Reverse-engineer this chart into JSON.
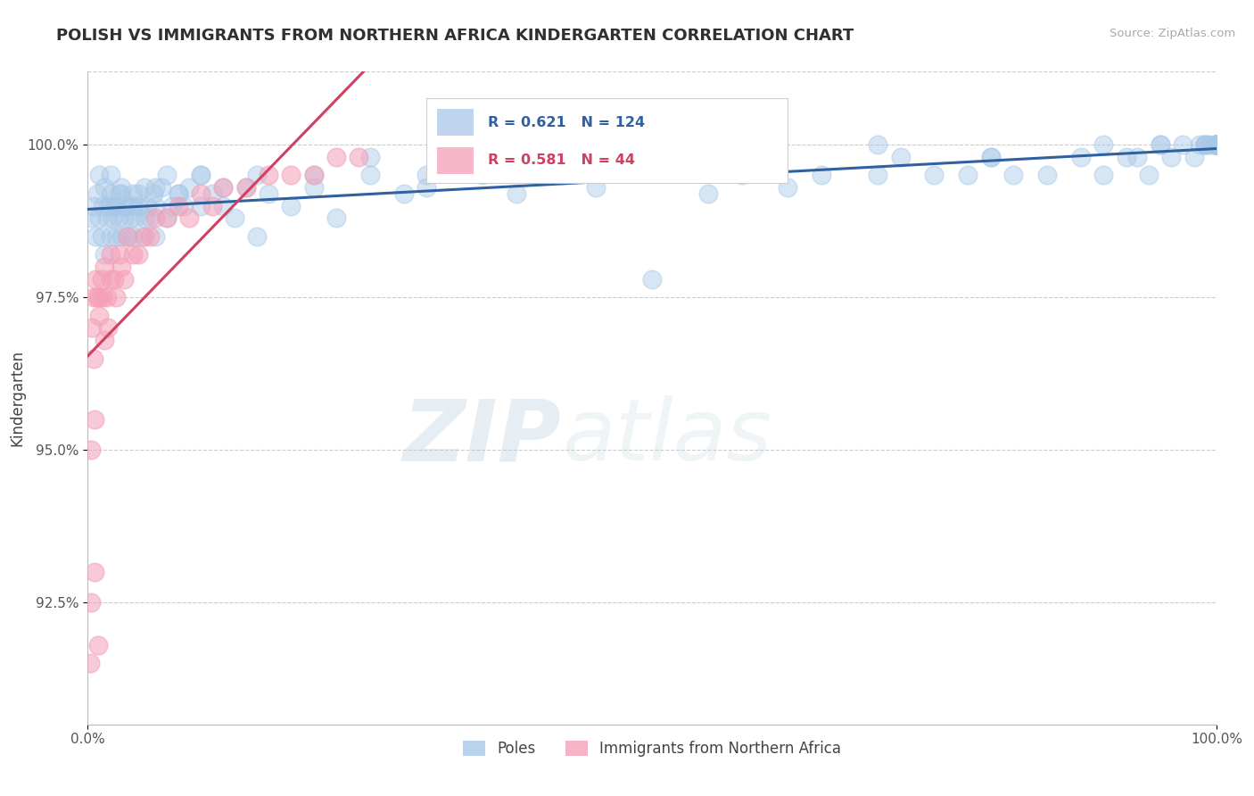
{
  "title": "POLISH VS IMMIGRANTS FROM NORTHERN AFRICA KINDERGARTEN CORRELATION CHART",
  "source": "Source: ZipAtlas.com",
  "ylabel": "Kindergarten",
  "xlim": [
    0.0,
    100.0
  ],
  "ylim": [
    90.5,
    101.2
  ],
  "yticks": [
    92.5,
    95.0,
    97.5,
    100.0
  ],
  "ytick_labels": [
    "92.5%",
    "95.0%",
    "97.5%",
    "100.0%"
  ],
  "xtick_labels": [
    "0.0%",
    "100.0%"
  ],
  "blue_color": "#a8c8e8",
  "pink_color": "#f4a0b8",
  "blue_line_color": "#3060a0",
  "pink_line_color": "#d04060",
  "legend_blue_label": "Poles",
  "legend_pink_label": "Immigrants from Northern Africa",
  "R_blue": 0.621,
  "N_blue": 124,
  "R_pink": 0.581,
  "N_pink": 44,
  "watermark_zip": "ZIP",
  "watermark_atlas": "atlas",
  "background_color": "#ffffff",
  "grid_color": "#cccccc",
  "title_color": "#303030",
  "blue_scatter_x": [
    0.3,
    0.5,
    0.7,
    0.8,
    1.0,
    1.0,
    1.2,
    1.3,
    1.5,
    1.5,
    1.7,
    1.8,
    2.0,
    2.0,
    2.0,
    2.2,
    2.3,
    2.5,
    2.5,
    2.7,
    2.8,
    3.0,
    3.0,
    3.2,
    3.3,
    3.5,
    3.5,
    3.8,
    4.0,
    4.0,
    4.2,
    4.5,
    4.5,
    4.8,
    5.0,
    5.0,
    5.3,
    5.5,
    5.8,
    6.0,
    6.0,
    6.5,
    7.0,
    7.0,
    7.5,
    8.0,
    8.5,
    9.0,
    10.0,
    10.0,
    11.0,
    12.0,
    13.0,
    14.0,
    15.0,
    16.0,
    18.0,
    20.0,
    22.0,
    25.0,
    28.0,
    30.0,
    35.0,
    38.0,
    42.0,
    45.0,
    50.0,
    55.0,
    58.0,
    62.0,
    65.0,
    70.0,
    72.0,
    75.0,
    78.0,
    80.0,
    82.0,
    85.0,
    88.0,
    90.0,
    92.0,
    93.0,
    94.0,
    95.0,
    96.0,
    97.0,
    98.0,
    98.5,
    99.0,
    99.0,
    99.5,
    100.0,
    100.0,
    100.0,
    100.0,
    100.0,
    100.0,
    100.0,
    100.0,
    100.0,
    2.0,
    3.0,
    4.0,
    6.0,
    8.0,
    10.0,
    12.0,
    15.0,
    20.0,
    25.0,
    30.0,
    35.0,
    40.0,
    50.0,
    60.0,
    70.0,
    80.0,
    90.0,
    95.0,
    99.0,
    100.0,
    100.0,
    100.0,
    100.0
  ],
  "blue_scatter_y": [
    98.8,
    99.0,
    98.5,
    99.2,
    98.8,
    99.5,
    98.5,
    99.0,
    98.2,
    99.3,
    98.8,
    99.0,
    98.5,
    99.2,
    99.5,
    98.8,
    99.0,
    98.5,
    99.0,
    98.8,
    99.2,
    98.5,
    99.3,
    98.8,
    99.0,
    98.5,
    99.0,
    98.8,
    98.5,
    99.2,
    98.8,
    99.0,
    99.2,
    98.5,
    98.8,
    99.3,
    99.0,
    98.8,
    99.2,
    98.5,
    99.0,
    99.3,
    98.8,
    99.5,
    99.0,
    99.2,
    99.0,
    99.3,
    99.0,
    99.5,
    99.2,
    99.0,
    98.8,
    99.3,
    98.5,
    99.2,
    99.0,
    99.3,
    98.8,
    99.5,
    99.2,
    99.3,
    99.5,
    99.2,
    99.5,
    99.3,
    97.8,
    99.2,
    99.5,
    99.3,
    99.5,
    99.5,
    99.8,
    99.5,
    99.5,
    99.8,
    99.5,
    99.5,
    99.8,
    99.5,
    99.8,
    99.8,
    99.5,
    100.0,
    99.8,
    100.0,
    99.8,
    100.0,
    100.0,
    100.0,
    100.0,
    100.0,
    100.0,
    100.0,
    100.0,
    100.0,
    100.0,
    100.0,
    100.0,
    100.0,
    99.0,
    99.2,
    99.0,
    99.3,
    99.2,
    99.5,
    99.3,
    99.5,
    99.5,
    99.8,
    99.5,
    99.8,
    99.5,
    99.8,
    99.8,
    100.0,
    99.8,
    100.0,
    100.0,
    100.0,
    100.0,
    100.0,
    100.0,
    100.0
  ],
  "pink_scatter_x": [
    0.2,
    0.3,
    0.4,
    0.5,
    0.5,
    0.6,
    0.7,
    0.8,
    0.9,
    1.0,
    1.0,
    1.2,
    1.3,
    1.5,
    1.5,
    1.7,
    1.8,
    2.0,
    2.0,
    2.3,
    2.5,
    2.8,
    3.0,
    3.2,
    3.5,
    4.0,
    4.5,
    5.0,
    5.5,
    6.0,
    7.0,
    8.0,
    9.0,
    10.0,
    11.0,
    12.0,
    14.0,
    16.0,
    18.0,
    20.0,
    22.0,
    24.0,
    0.3,
    0.6
  ],
  "pink_scatter_y": [
    91.5,
    92.5,
    97.0,
    97.5,
    96.5,
    93.0,
    97.8,
    97.5,
    91.8,
    97.2,
    97.5,
    97.8,
    97.5,
    96.8,
    98.0,
    97.5,
    97.0,
    97.8,
    98.2,
    97.8,
    97.5,
    98.2,
    98.0,
    97.8,
    98.5,
    98.2,
    98.2,
    98.5,
    98.5,
    98.8,
    98.8,
    99.0,
    98.8,
    99.2,
    99.0,
    99.3,
    99.3,
    99.5,
    99.5,
    99.5,
    99.8,
    99.8,
    95.0,
    95.5
  ]
}
